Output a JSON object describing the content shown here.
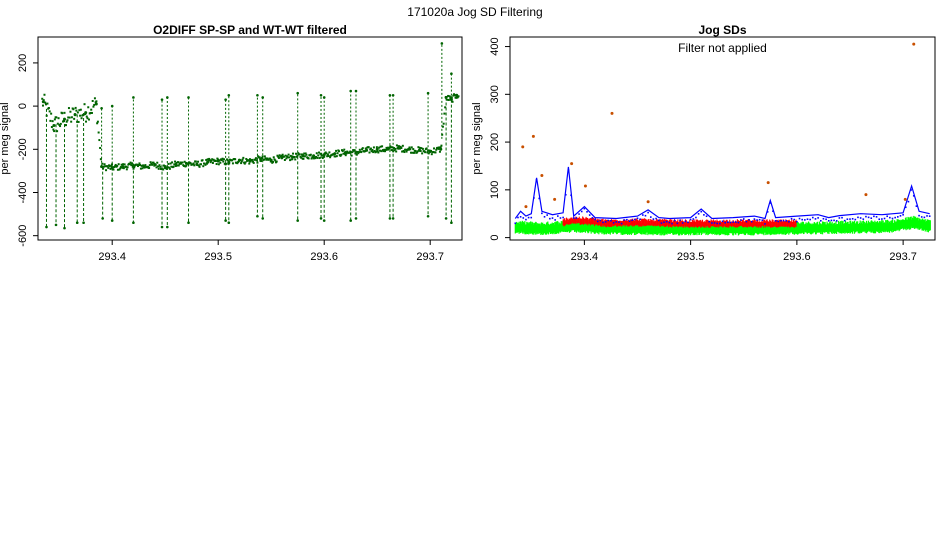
{
  "figure": {
    "title": "171020a   Jog SD Filtering"
  },
  "colors": {
    "o2diff": "#006400",
    "jog_sd_line": "#0000ff",
    "jog_sd_red": "#ff0000",
    "jog_sd_green": "#00ff00",
    "outlier": "#c85000",
    "axis": "#000000"
  },
  "chart_data": [
    {
      "type": "scatter",
      "title": "O2DIFF SP-SP and WT-WT filtered",
      "xlabel": "",
      "ylabel": "per meg signal",
      "xlim": [
        293.33,
        293.73
      ],
      "ylim": [
        -620,
        320
      ],
      "x_ticks": [
        293.4,
        293.5,
        293.6,
        293.7
      ],
      "x_tick_labels": [
        "293.4",
        "293.5",
        "293.6",
        "293.7"
      ],
      "y_ticks": [
        -600,
        -400,
        -200,
        0,
        200
      ],
      "y_tick_labels": [
        "-600",
        "-400",
        "-200",
        "0",
        "200"
      ],
      "grid": false,
      "series": [
        {
          "points": [
            [
              293.335,
              20
            ],
            [
              293.345,
              -90
            ],
            [
              293.355,
              -60
            ],
            [
              293.365,
              -40
            ],
            [
              293.375,
              -30
            ],
            [
              293.385,
              10
            ],
            [
              293.39,
              -280
            ],
            [
              293.4,
              -285
            ],
            [
              293.41,
              -280
            ],
            [
              293.42,
              -275
            ],
            [
              293.43,
              -280
            ],
            [
              293.44,
              -270
            ],
            [
              293.45,
              -285
            ],
            [
              293.46,
              -270
            ],
            [
              293.47,
              -265
            ],
            [
              293.48,
              -270
            ],
            [
              293.49,
              -260
            ],
            [
              293.5,
              -255
            ],
            [
              293.51,
              -260
            ],
            [
              293.52,
              -250
            ],
            [
              293.53,
              -255
            ],
            [
              293.54,
              -245
            ],
            [
              293.55,
              -250
            ],
            [
              293.56,
              -240
            ],
            [
              293.57,
              -235
            ],
            [
              293.58,
              -230
            ],
            [
              293.59,
              -230
            ],
            [
              293.6,
              -225
            ],
            [
              293.61,
              -220
            ],
            [
              293.62,
              -215
            ],
            [
              293.63,
              -215
            ],
            [
              293.64,
              -205
            ],
            [
              293.65,
              -200
            ],
            [
              293.66,
              -200
            ],
            [
              293.67,
              -195
            ],
            [
              293.68,
              -200
            ],
            [
              293.69,
              -205
            ],
            [
              293.7,
              -210
            ],
            [
              293.71,
              -200
            ],
            [
              293.715,
              40
            ],
            [
              293.72,
              30
            ],
            [
              293.725,
              50
            ]
          ],
          "spikes_down": [
            [
              293.338,
              -560
            ],
            [
              293.347,
              -550
            ],
            [
              293.355,
              -565
            ],
            [
              293.367,
              -540
            ],
            [
              293.373,
              -540
            ],
            [
              293.391,
              -520
            ],
            [
              293.4,
              -530
            ],
            [
              293.42,
              -540
            ],
            [
              293.447,
              -560
            ],
            [
              293.452,
              -560
            ],
            [
              293.472,
              -540
            ],
            [
              293.507,
              -530
            ],
            [
              293.51,
              -540
            ],
            [
              293.537,
              -510
            ],
            [
              293.542,
              -520
            ],
            [
              293.575,
              -530
            ],
            [
              293.597,
              -520
            ],
            [
              293.6,
              -530
            ],
            [
              293.625,
              -530
            ],
            [
              293.63,
              -520
            ],
            [
              293.662,
              -520
            ],
            [
              293.665,
              -520
            ],
            [
              293.698,
              -510
            ],
            [
              293.715,
              -520
            ],
            [
              293.72,
              -540
            ]
          ],
          "spikes_up": [
            [
              293.39,
              -10
            ],
            [
              293.4,
              0
            ],
            [
              293.42,
              40
            ],
            [
              293.447,
              30
            ],
            [
              293.452,
              40
            ],
            [
              293.472,
              40
            ],
            [
              293.507,
              30
            ],
            [
              293.51,
              50
            ],
            [
              293.537,
              50
            ],
            [
              293.542,
              40
            ],
            [
              293.575,
              60
            ],
            [
              293.597,
              50
            ],
            [
              293.6,
              40
            ],
            [
              293.625,
              70
            ],
            [
              293.63,
              70
            ],
            [
              293.662,
              50
            ],
            [
              293.665,
              50
            ],
            [
              293.698,
              60
            ],
            [
              293.711,
              290
            ],
            [
              293.72,
              150
            ]
          ]
        }
      ]
    },
    {
      "type": "line",
      "title": "Jog SDs",
      "subtitle": "Filter not applied",
      "xlabel": "",
      "ylabel": "per meg signal",
      "xlim": [
        293.33,
        293.73
      ],
      "ylim": [
        -5,
        420
      ],
      "x_ticks": [
        293.4,
        293.5,
        293.6,
        293.7
      ],
      "x_tick_labels": [
        "293.4",
        "293.5",
        "293.6",
        "293.7"
      ],
      "y_ticks": [
        0,
        100,
        200,
        300,
        400
      ],
      "y_tick_labels": [
        "0",
        "100",
        "200",
        "300",
        "400"
      ],
      "grid": false,
      "series": [
        {
          "color_key": "jog_sd_green",
          "x": [
            293.335,
            293.36,
            293.39,
            293.42,
            293.45,
            293.48,
            293.51,
            293.54,
            293.57,
            293.6,
            293.63,
            293.66,
            293.69,
            293.71,
            293.725
          ],
          "values": [
            28,
            25,
            30,
            26,
            25,
            24,
            25,
            24,
            25,
            26,
            27,
            28,
            30,
            38,
            30
          ]
        },
        {
          "color_key": "jog_sd_red",
          "x": [
            293.38,
            293.39,
            293.4,
            293.41,
            293.42,
            293.43,
            293.45,
            293.5,
            293.55,
            293.6
          ],
          "values": [
            35,
            40,
            38,
            36,
            33,
            34,
            35,
            32,
            33,
            32
          ]
        },
        {
          "color_key": "jog_sd_line",
          "x": [
            293.335,
            293.34,
            293.345,
            293.35,
            293.355,
            293.36,
            293.37,
            293.38,
            293.385,
            293.39,
            293.4,
            293.41,
            293.43,
            293.45,
            293.46,
            293.47,
            293.48,
            293.5,
            293.51,
            293.52,
            293.54,
            293.56,
            293.57,
            293.575,
            293.58,
            293.6,
            293.62,
            293.63,
            293.64,
            293.66,
            293.68,
            293.7,
            293.708,
            293.715,
            293.725
          ],
          "values": [
            40,
            55,
            45,
            50,
            125,
            55,
            48,
            52,
            148,
            45,
            65,
            42,
            40,
            45,
            58,
            42,
            40,
            42,
            60,
            40,
            42,
            45,
            40,
            78,
            42,
            45,
            48,
            42,
            46,
            50,
            48,
            52,
            108,
            55,
            50
          ]
        },
        {
          "color_key": "outlier",
          "x": [
            293.342,
            293.345,
            293.352,
            293.36,
            293.372,
            293.388,
            293.401,
            293.426,
            293.46,
            293.573,
            293.665,
            293.702,
            293.71
          ],
          "values": [
            190,
            65,
            212,
            130,
            80,
            155,
            108,
            260,
            75,
            115,
            90,
            80,
            405
          ]
        }
      ]
    }
  ]
}
